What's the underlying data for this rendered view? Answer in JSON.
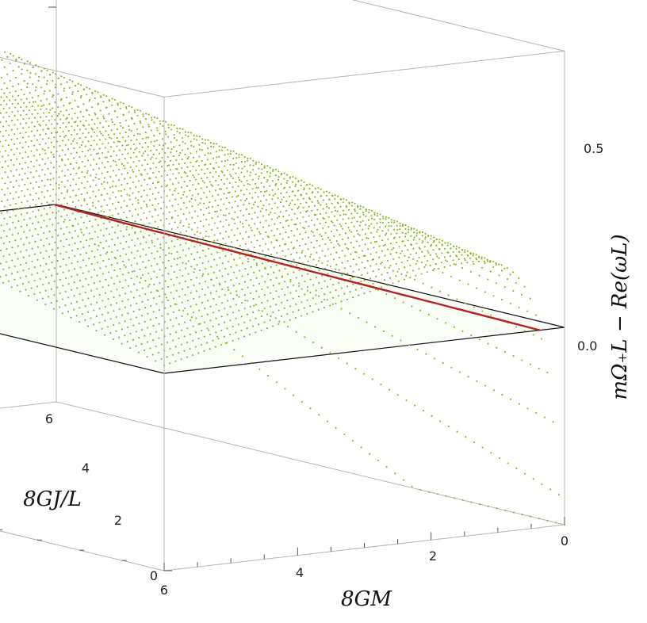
{
  "chart_data": {
    "type": "surface3d",
    "title": "",
    "xlabel": "8GM",
    "ylabel": "8GJ/L",
    "zlabel": "mΩ₊L − Re(ωL)",
    "x_ticks": [
      "0",
      "2",
      "4",
      "6"
    ],
    "y_ticks": [
      "0",
      "2",
      "4",
      "6"
    ],
    "z_ticks": [
      "0.0",
      "0.5"
    ],
    "xlim": [
      0,
      6
    ],
    "ylim": [
      0,
      6
    ],
    "zlim": [
      -0.5,
      0.7
    ],
    "reference_plane_z": 0.0,
    "colors": {
      "surface": "#8ab31c",
      "zero_contour": "#b22222",
      "plane_edge": "#111111",
      "box": "#b5b5b5"
    },
    "series": [
      {
        "kind": "surface-point-grid",
        "x_range": [
          0,
          6
        ],
        "y_range": [
          0,
          6
        ],
        "z_range": [
          -0.5,
          0.55
        ]
      },
      {
        "kind": "zero-level-curve"
      }
    ]
  }
}
